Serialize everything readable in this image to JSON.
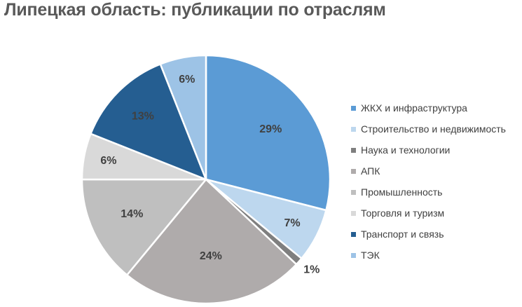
{
  "chart_data": {
    "type": "pie",
    "title": "Липецкая область: публикации по отраслям",
    "legend_position": "right",
    "categories": [
      "ЖКХ и инфраструктура",
      "Строительство и недвижимость",
      "Наука и технологии",
      "АПК",
      "Промышленность",
      "Торговля и туризм",
      "Транспорт и связь",
      "ТЭК"
    ],
    "values": [
      29,
      7,
      1,
      24,
      14,
      6,
      13,
      6
    ],
    "labels": [
      "29%",
      "7%",
      "1%",
      "24%",
      "14%",
      "6%",
      "13%",
      "6%"
    ],
    "colors": [
      "#5b9bd5",
      "#bdd7ee",
      "#7f7f7f",
      "#afabab",
      "#bfbfbf",
      "#d9d9d9",
      "#255e91",
      "#9dc3e6"
    ]
  }
}
